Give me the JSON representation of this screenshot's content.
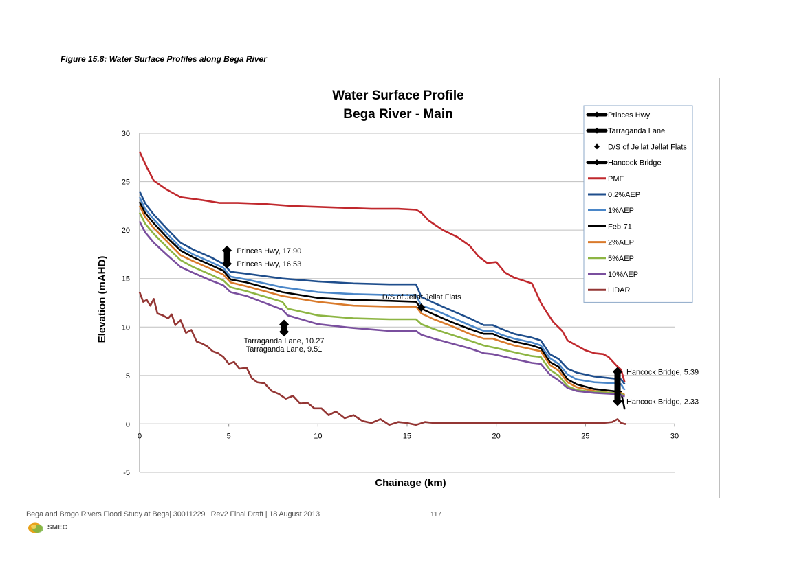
{
  "figure_caption": "Figure 15.8: Water Surface Profiles along Bega River",
  "footer": {
    "text": "Bega and Brogo Rivers Flood Study at Bega| 30011229 | Rev2 Final Draft | 18 August 2013",
    "page_number": "117",
    "logo_text": "SMEC",
    "logo_icon": "smec-logo-icon"
  },
  "chart_data": {
    "type": "line",
    "title": [
      "Water Surface Profile",
      "Bega River - Main"
    ],
    "xlabel": "Chainage (km)",
    "ylabel": "Elevation (mAHD)",
    "xlim": [
      0,
      30
    ],
    "ylim": [
      -5,
      30
    ],
    "x_ticks": [
      0,
      5,
      10,
      15,
      20,
      25,
      30
    ],
    "y_ticks": [
      -5,
      0,
      5,
      10,
      15,
      20,
      25,
      30
    ],
    "grid": "horizontal",
    "legend_position": "top-right",
    "series": [
      {
        "name": "PMF",
        "color": "#c0282d",
        "x": [
          0,
          0.4,
          0.8,
          1.5,
          2.3,
          3.5,
          4.5,
          5.5,
          7,
          8.5,
          10,
          11.5,
          13,
          14.5,
          15.5,
          15.8,
          16.2,
          17,
          17.8,
          18.5,
          19,
          19.5,
          20,
          20.5,
          21,
          21.5,
          22,
          22.5,
          22.8,
          23.2,
          23.7,
          24,
          24.5,
          25,
          25.5,
          26,
          26.3,
          26.7,
          27,
          27.2
        ],
        "y": [
          28.1,
          26.5,
          25.1,
          24.2,
          23.4,
          23.1,
          22.8,
          22.8,
          22.7,
          22.5,
          22.4,
          22.3,
          22.2,
          22.2,
          22.1,
          21.8,
          21,
          20,
          19.3,
          18.4,
          17.3,
          16.6,
          16.7,
          15.6,
          15.1,
          14.8,
          14.5,
          12.5,
          11.6,
          10.5,
          9.6,
          8.6,
          8.1,
          7.6,
          7.3,
          7.2,
          6.9,
          6.1,
          5.6,
          4.3
        ]
      },
      {
        "name": "0.2%AEP",
        "color": "#1f4e8c",
        "x": [
          0,
          0.3,
          0.8,
          1.5,
          2.3,
          3,
          4,
          4.7,
          5.1,
          6,
          8,
          10,
          12,
          14,
          15.5,
          15.8,
          16.5,
          17.5,
          18.5,
          19.3,
          19.8,
          20.3,
          21,
          22,
          22.5,
          23,
          23.5,
          24,
          24.5,
          25.5,
          26.5,
          27,
          27.2
        ],
        "y": [
          24,
          22.8,
          21.6,
          20.2,
          18.7,
          18,
          17.2,
          16.5,
          15.7,
          15.5,
          15,
          14.7,
          14.5,
          14.4,
          14.4,
          13.1,
          12.5,
          11.7,
          10.9,
          10.2,
          10.2,
          9.8,
          9.3,
          8.9,
          8.6,
          7.2,
          6.7,
          5.7,
          5.3,
          4.9,
          4.7,
          4.6,
          4.1
        ]
      },
      {
        "name": "1%AEP",
        "color": "#4a86c8",
        "x": [
          0,
          0.3,
          0.8,
          1.5,
          2.3,
          3,
          4,
          4.7,
          5.1,
          6,
          8,
          10,
          12,
          14,
          15.5,
          15.8,
          16.5,
          17.5,
          18.5,
          19.3,
          19.8,
          20.3,
          21,
          22,
          22.5,
          23,
          23.5,
          24,
          24.5,
          25.5,
          26.5,
          27,
          27.2
        ],
        "y": [
          23.4,
          22.2,
          21.1,
          19.7,
          18.2,
          17.5,
          16.7,
          16.1,
          15.2,
          14.9,
          14.1,
          13.6,
          13.4,
          13.3,
          13.3,
          12.2,
          11.8,
          11,
          10.2,
          9.6,
          9.6,
          9.2,
          8.8,
          8.4,
          8.1,
          6.8,
          6.2,
          5.1,
          4.6,
          4.3,
          4.2,
          4.1,
          3.5
        ]
      },
      {
        "name": "Feb-71",
        "color": "#000000",
        "x": [
          0,
          0.3,
          0.8,
          1.5,
          2.3,
          3,
          4,
          4.7,
          5.1,
          6,
          8,
          10,
          12,
          14,
          15.5,
          15.8,
          16.5,
          17.5,
          18.5,
          19.3,
          19.8,
          20.3,
          21,
          22,
          22.5,
          23,
          23.5,
          24,
          24.5,
          25.5,
          26.5,
          27,
          27.2
        ],
        "y": [
          22.9,
          21.8,
          20.7,
          19.3,
          17.9,
          17.2,
          16.4,
          15.8,
          14.9,
          14.6,
          13.6,
          13,
          12.8,
          12.7,
          12.6,
          11.9,
          11.3,
          10.5,
          9.8,
          9.3,
          9.3,
          8.9,
          8.5,
          8.1,
          7.8,
          6.4,
          5.9,
          4.6,
          4.1,
          3.6,
          3.4,
          3.3,
          1.5
        ]
      },
      {
        "name": "2%AEP",
        "color": "#d97a2b",
        "x": [
          0,
          0.3,
          0.8,
          1.5,
          2.3,
          3,
          4,
          4.7,
          5.1,
          6,
          8,
          10,
          12,
          14,
          15.5,
          15.8,
          16.5,
          17.5,
          18.5,
          19.3,
          19.8,
          20.3,
          21,
          22,
          22.5,
          23,
          23.5,
          24,
          24.5,
          25.5,
          26.5,
          27,
          27.2
        ],
        "y": [
          22.5,
          21.4,
          20.2,
          18.9,
          17.4,
          16.8,
          16,
          15.4,
          14.6,
          14.2,
          13.2,
          12.6,
          12.2,
          12.1,
          12.1,
          11.4,
          10.8,
          10.1,
          9.3,
          8.8,
          8.8,
          8.5,
          8.1,
          7.7,
          7.5,
          6.1,
          5.5,
          4.3,
          3.8,
          3.4,
          3.2,
          3.2,
          3
        ]
      },
      {
        "name": "5%AEP",
        "color": "#8db543",
        "x": [
          0,
          0.3,
          0.8,
          1.5,
          2.3,
          3,
          4,
          4.7,
          5.1,
          6,
          8,
          8.3,
          10,
          12,
          14,
          15.5,
          15.8,
          16.5,
          17.5,
          18.5,
          19.3,
          19.8,
          20.3,
          21,
          22,
          22.5,
          23,
          23.5,
          24,
          24.5,
          25.5,
          26.5,
          27,
          27.2
        ],
        "y": [
          21.8,
          20.7,
          19.6,
          18.3,
          16.9,
          16.2,
          15.4,
          14.8,
          14.1,
          13.7,
          12.6,
          11.9,
          11.2,
          10.9,
          10.8,
          10.8,
          10.3,
          9.8,
          9.2,
          8.6,
          8.1,
          7.9,
          7.7,
          7.4,
          7,
          6.9,
          5.6,
          5,
          3.9,
          3.5,
          3.3,
          3.2,
          3.1,
          2.9
        ]
      },
      {
        "name": "10%AEP",
        "color": "#7a4f9e",
        "x": [
          0,
          0.3,
          0.8,
          1.5,
          2.3,
          3,
          4,
          4.7,
          5.1,
          6,
          8,
          8.3,
          10,
          12,
          14,
          15.5,
          15.8,
          16.5,
          17.5,
          18.5,
          19.3,
          19.8,
          20.3,
          21,
          22,
          22.5,
          23,
          23.5,
          24,
          24.5,
          25.5,
          26.5,
          27,
          27.2
        ],
        "y": [
          20.9,
          19.8,
          18.7,
          17.5,
          16.2,
          15.6,
          14.8,
          14.3,
          13.6,
          13.2,
          11.8,
          11.2,
          10.3,
          9.9,
          9.6,
          9.6,
          9.2,
          8.8,
          8.3,
          7.8,
          7.3,
          7.2,
          7,
          6.7,
          6.3,
          6.2,
          5.1,
          4.5,
          3.7,
          3.4,
          3.2,
          3.1,
          3,
          2.8
        ]
      },
      {
        "name": "LIDAR",
        "color": "#943634",
        "x": [
          0,
          0.2,
          0.4,
          0.6,
          0.8,
          1,
          1.3,
          1.6,
          1.8,
          2,
          2.3,
          2.6,
          2.9,
          3.2,
          3.5,
          3.8,
          4.1,
          4.4,
          4.7,
          5,
          5.3,
          5.6,
          6,
          6.3,
          6.6,
          7,
          7.4,
          7.8,
          8.2,
          8.6,
          9,
          9.4,
          9.8,
          10.2,
          10.6,
          11,
          11.5,
          12,
          12.5,
          13,
          13.5,
          14,
          14.5,
          15,
          15.5,
          16,
          16.5,
          17,
          18,
          20,
          22,
          24,
          26,
          26.5,
          26.8,
          27,
          27.2,
          27.3
        ],
        "y": [
          13.6,
          12.6,
          12.8,
          12.2,
          12.9,
          11.4,
          11.2,
          10.9,
          11.3,
          10.2,
          10.7,
          9.4,
          9.7,
          8.5,
          8.3,
          8,
          7.5,
          7.3,
          6.9,
          6.2,
          6.4,
          5.7,
          5.8,
          4.7,
          4.3,
          4.2,
          3.4,
          3.1,
          2.6,
          2.9,
          2.1,
          2.2,
          1.6,
          1.6,
          0.9,
          1.3,
          0.6,
          0.9,
          0.3,
          0.1,
          0.5,
          -0.1,
          0.2,
          0.1,
          -0.1,
          0.2,
          0.1,
          0.1,
          0.1,
          0.1,
          0.1,
          0.1,
          0.1,
          0.2,
          0.5,
          0.1,
          0,
          0
        ]
      }
    ],
    "structures": [
      {
        "name": "Princes Hwy",
        "color": "#000000",
        "x": 4.9,
        "levels": [
          17.9,
          16.53
        ],
        "style": "bar"
      },
      {
        "name": "Tarraganda Lane",
        "color": "#000000",
        "x": 8.1,
        "levels": [
          10.27,
          9.51
        ],
        "style": "bar"
      },
      {
        "name": "D/S of Jellat Jellat Flats",
        "color": "#000000",
        "x": 15.8,
        "levels": [
          12
        ],
        "style": "diamond"
      },
      {
        "name": "Hancock Bridge",
        "color": "#000000",
        "x": 26.8,
        "levels": [
          5.39,
          2.33
        ],
        "style": "bar"
      }
    ],
    "annotations": [
      {
        "text": "Princes Hwy, 17.90",
        "x": 5.45,
        "y": 17.9,
        "anchor": "start"
      },
      {
        "text": "Princes Hwy, 16.53",
        "x": 5.45,
        "y": 16.53,
        "anchor": "start"
      },
      {
        "text": "D/S of Jellat Jellat Flats",
        "x": 13.6,
        "y": 13.15,
        "anchor": "start"
      },
      {
        "text": "Tarraganda Lane, 10.27",
        "x": 8.1,
        "y": 8.6,
        "anchor": "middle"
      },
      {
        "text": "Tarraganda Lane, 9.51",
        "x": 8.1,
        "y": 7.75,
        "anchor": "middle"
      },
      {
        "text": "Hancock Bridge, 5.39",
        "x": 27.3,
        "y": 5.39,
        "anchor": "start"
      },
      {
        "text": "Hancock Bridge, 2.33",
        "x": 27.3,
        "y": 2.33,
        "anchor": "start"
      }
    ],
    "legend": [
      {
        "label": "Princes Hwy",
        "color": "#000000",
        "marker": "diamond-bar"
      },
      {
        "label": "Tarraganda Lane",
        "color": "#000000",
        "marker": "diamond-bar"
      },
      {
        "label": "D/S of Jellat Jellat Flats",
        "color": "#000000",
        "marker": "diamond"
      },
      {
        "label": "Hancock Bridge",
        "color": "#000000",
        "marker": "diamond-bar"
      },
      {
        "label": "PMF",
        "color": "#c0282d",
        "marker": "line"
      },
      {
        "label": "0.2%AEP",
        "color": "#1f4e8c",
        "marker": "line"
      },
      {
        "label": "1%AEP",
        "color": "#4a86c8",
        "marker": "line"
      },
      {
        "label": "Feb-71",
        "color": "#000000",
        "marker": "line"
      },
      {
        "label": "2%AEP",
        "color": "#d97a2b",
        "marker": "line"
      },
      {
        "label": "5%AEP",
        "color": "#8db543",
        "marker": "line"
      },
      {
        "label": "10%AEP",
        "color": "#7a4f9e",
        "marker": "line"
      },
      {
        "label": "LIDAR",
        "color": "#943634",
        "marker": "line"
      }
    ]
  }
}
